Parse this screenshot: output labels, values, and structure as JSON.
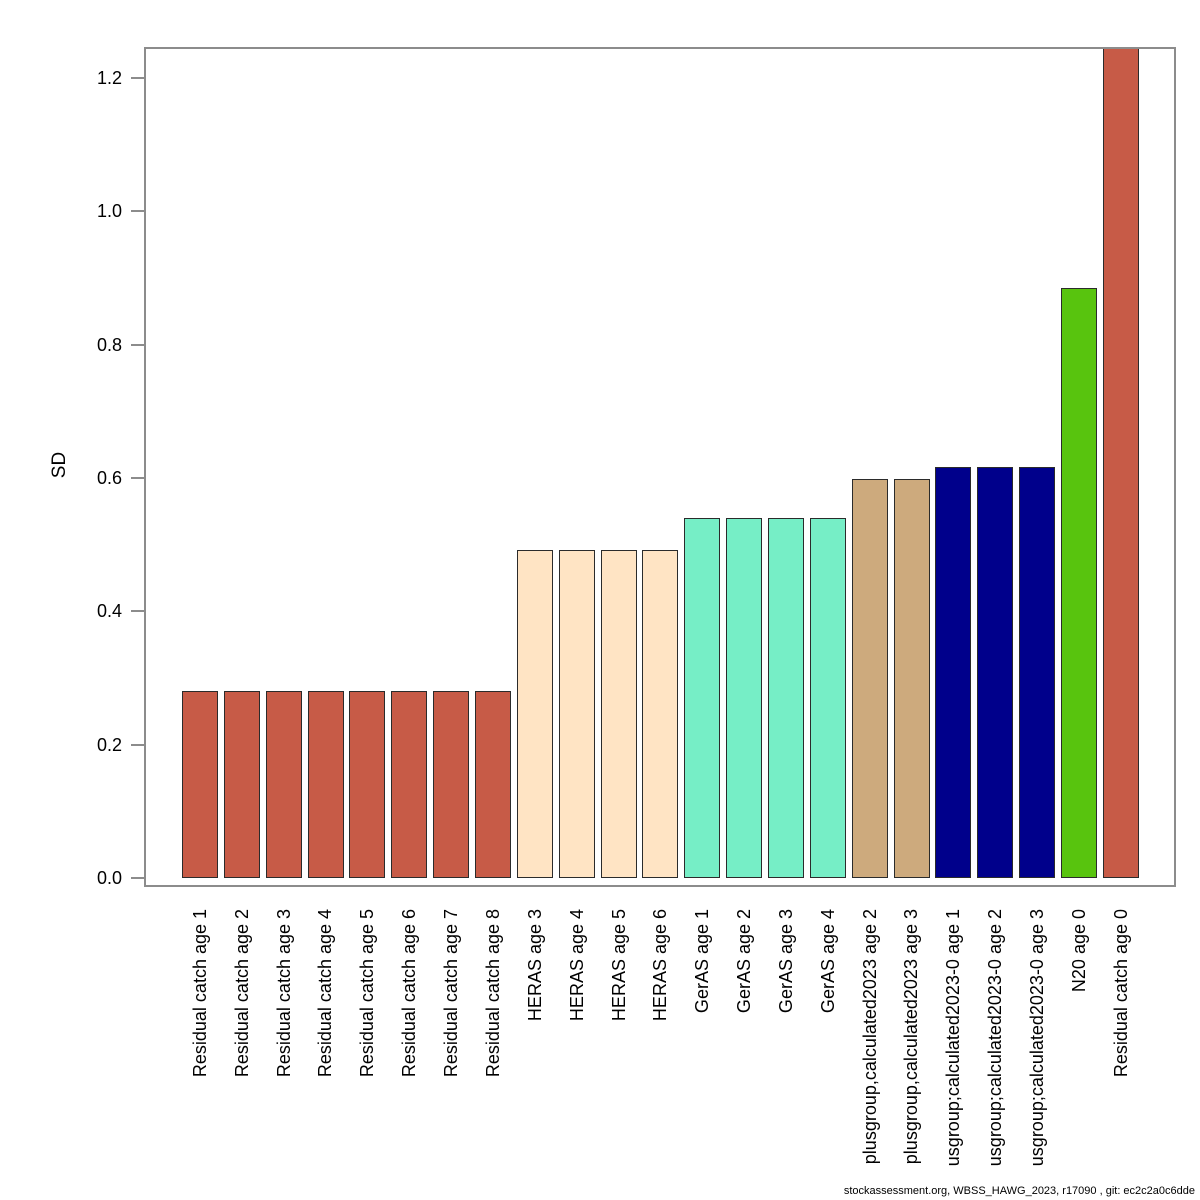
{
  "y_axis": {
    "label": "SD",
    "tick_labels": [
      "0.0",
      "0.2",
      "0.4",
      "0.6",
      "0.8",
      "1.0",
      "1.2"
    ]
  },
  "footer": {
    "text": "stockassessment.org, WBSS_HAWG_2023, r17090 , git: ec2c2a0c6dde"
  },
  "chart_data": {
    "type": "bar",
    "title": "",
    "xlabel": "",
    "ylabel": "SD",
    "ylim": [
      0,
      1.25
    ],
    "yticks": [
      0,
      0.2,
      0.4,
      0.6,
      0.8,
      1.0,
      1.2
    ],
    "grid": false,
    "legend_position": "none",
    "bar_edge_color": "#2b2b2b",
    "note": "Last bar (Residual catch age 0) is clipped by the top edge of the plot box; x labels are rotated 90° and clipped by the bottom image edge.",
    "categories": [
      "Residual catch age 1",
      "Residual catch age 2",
      "Residual catch age 3",
      "Residual catch age 4",
      "Residual catch age 5",
      "Residual catch age 6",
      "Residual catch age 7",
      "Residual catch age 8",
      "HERAS age 3",
      "HERAS age 4",
      "HERAS age 5",
      "HERAS age 6",
      "GerAS age 1",
      "GerAS age 2",
      "GerAS age 3",
      "GerAS age 4",
      "plusgroup,calculated2023 age 2",
      "plusgroup,calculated2023 age 3",
      "usgroup;calculated2023-0 age 1",
      "usgroup;calculated2023-0 age 2",
      "usgroup;calculated2023-0 age 3",
      "N20 age 0",
      "Residual catch age 0"
    ],
    "values": [
      0.281,
      0.281,
      0.281,
      0.281,
      0.281,
      0.281,
      0.281,
      0.281,
      0.492,
      0.492,
      0.492,
      0.492,
      0.54,
      0.54,
      0.54,
      0.54,
      0.599,
      0.599,
      0.617,
      0.617,
      0.617,
      0.885,
      1.247
    ],
    "bar_colors": [
      "#C75B47",
      "#C75B47",
      "#C75B47",
      "#C75B47",
      "#C75B47",
      "#C75B47",
      "#C75B47",
      "#C75B47",
      "#FFE4C4",
      "#FFE4C4",
      "#FFE4C4",
      "#FFE4C4",
      "#76EEC6",
      "#76EEC6",
      "#76EEC6",
      "#76EEC6",
      "#CDAA7D",
      "#CDAA7D",
      "#00008B",
      "#00008B",
      "#00008B",
      "#58C40E",
      "#C75B47"
    ]
  }
}
